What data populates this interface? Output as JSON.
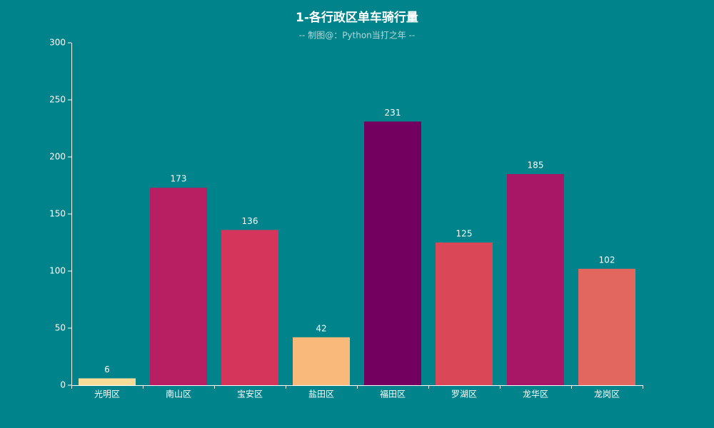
{
  "chart_data": {
    "type": "bar",
    "title": "1-各行政区单车骑行量",
    "subtitle": "-- 制图@：Python当打之年 --",
    "categories": [
      "光明区",
      "南山区",
      "宝安区",
      "盐田区",
      "福田区",
      "罗湖区",
      "龙华区",
      "龙岗区"
    ],
    "values": [
      6,
      173,
      136,
      42,
      231,
      125,
      185,
      102
    ],
    "colors": [
      "#f7dc98",
      "#b71f62",
      "#d5355a",
      "#f8b97a",
      "#73005e",
      "#da4858",
      "#a71766",
      "#e2685f"
    ],
    "ylim": [
      0,
      300
    ],
    "yticks": [
      0,
      50,
      100,
      150,
      200,
      250,
      300
    ],
    "grid": false
  }
}
